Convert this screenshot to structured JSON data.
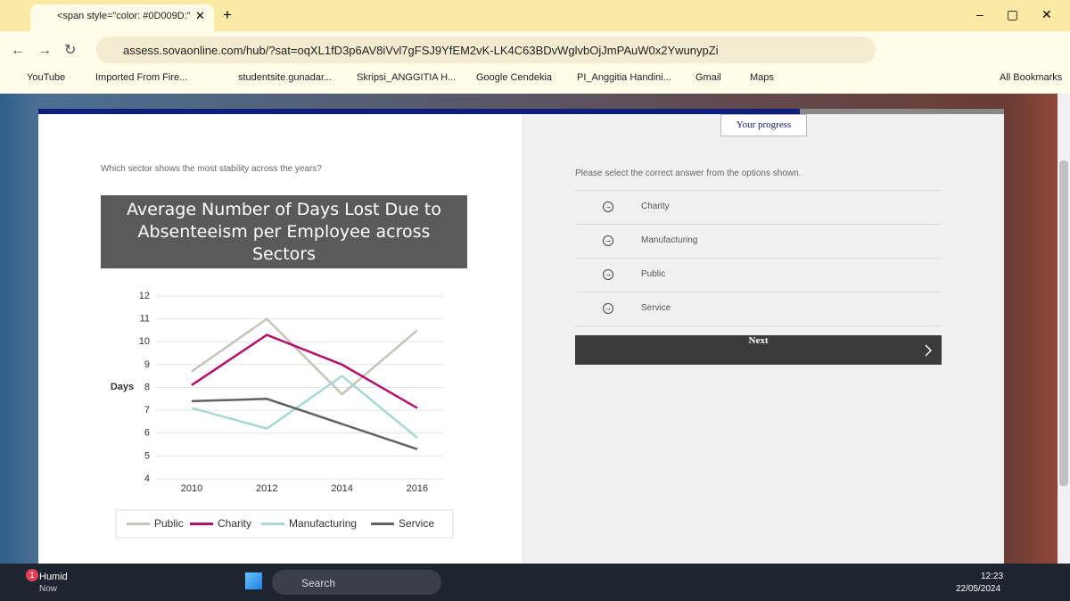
{
  "browser": {
    "tab_title": "<span style=\"color: #0D009D:\"",
    "url": "assess.sovaonline.com/hub/?sat=oqXL1fD3p6AV8iVvl7gFSJ9YfEM2vK-LK4C63BDvWglvbOjJmPAuW0x2YwunypZi",
    "bookmarks": [
      "YouTube",
      "Imported From Fire...",
      "studentsite.gunadar...",
      "Skripsi_ANGGITIA H...",
      "Google Cendekia",
      "PI_Anggitia Handini...",
      "Gmail",
      "Maps"
    ],
    "all_bookmarks": "All Bookmarks"
  },
  "page": {
    "progress": "Your progress",
    "question": "Which sector shows the most stability across the years?",
    "instruction": "Please select the correct answer from the options shown.",
    "options": [
      "Charity",
      "Manufacturing",
      "Public",
      "Service"
    ],
    "next": "Next"
  },
  "chart_data": {
    "type": "line",
    "title": "Average Number of Days Lost Due to Absenteeism per Employee across Sectors",
    "y_label": "Days",
    "categories": [
      "2010",
      "2012",
      "2014",
      "2016"
    ],
    "series": [
      {
        "name": "Public",
        "color": "#c9c2ba",
        "values": [
          8.7,
          11.0,
          7.7,
          10.5
        ]
      },
      {
        "name": "Charity",
        "color": "#b3116b",
        "values": [
          8.1,
          10.3,
          9.0,
          7.1
        ]
      },
      {
        "name": "Manufacturing",
        "color": "#a8d8d3",
        "values": [
          7.1,
          6.2,
          8.5,
          5.8
        ]
      },
      {
        "name": "Service",
        "color": "#616161",
        "values": [
          7.4,
          7.5,
          6.4,
          5.3
        ]
      }
    ],
    "ylim": [
      4,
      12
    ],
    "yticks": [
      4,
      5,
      6,
      7,
      8,
      9,
      10,
      11,
      12
    ],
    "grid": true
  },
  "taskbar": {
    "badge": "1",
    "weather": "Humid",
    "weather_sub": "Now",
    "search": "Search",
    "time": "12:23",
    "date": "22/05/2024"
  }
}
